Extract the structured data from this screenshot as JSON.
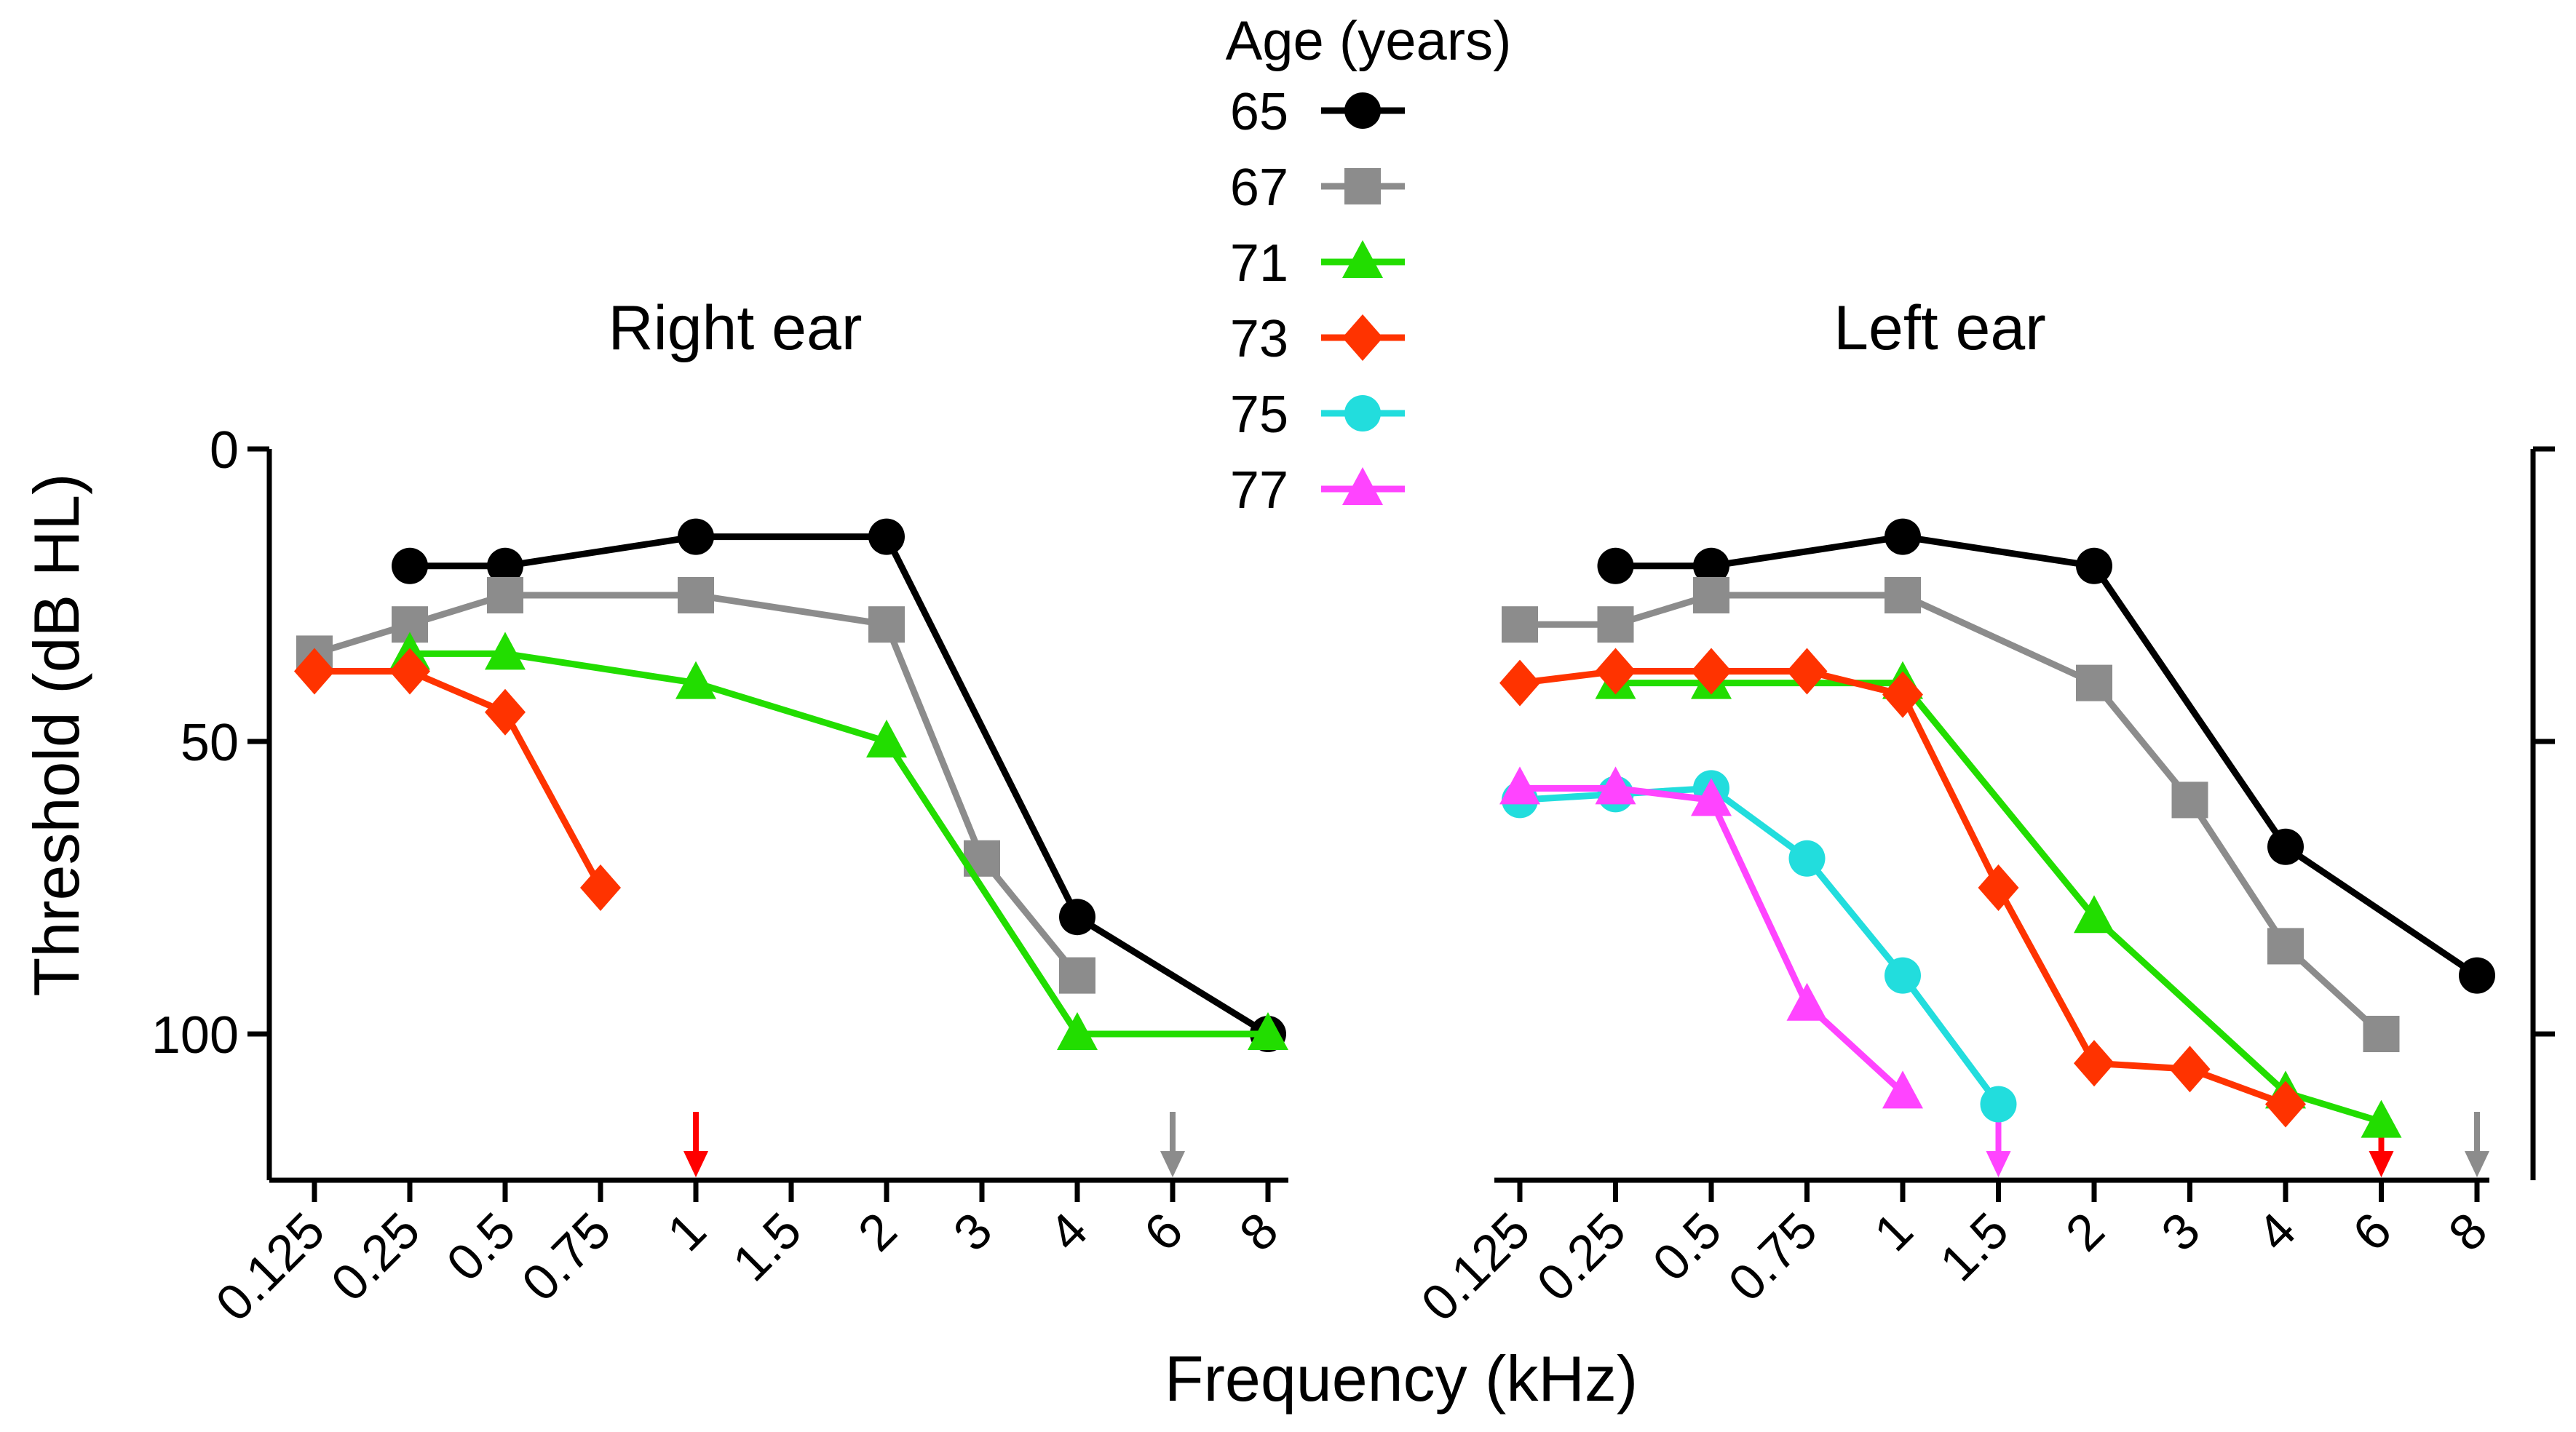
{
  "chart_data": {
    "type": "line",
    "figure_xlabel": "Frequency (kHz)",
    "figure_ylabel": "Threshold (dB HL)",
    "categories": [
      "0.125",
      "0.25",
      "0.5",
      "0.75",
      "1",
      "1.5",
      "2",
      "3",
      "4",
      "6",
      "8"
    ],
    "ylim": [
      0,
      125
    ],
    "yticks": [
      0,
      50,
      100
    ],
    "legend": {
      "title": "Age (years)",
      "position": "top-center",
      "entries": [
        {
          "label": "65",
          "color": "#000000",
          "marker": "circle"
        },
        {
          "label": "67",
          "color": "#8c8c8c",
          "marker": "square"
        },
        {
          "label": "71",
          "color": "#22dd00",
          "marker": "triangle"
        },
        {
          "label": "73",
          "color": "#ff3300",
          "marker": "diamond"
        },
        {
          "label": "75",
          "color": "#22dddd",
          "marker": "circle"
        },
        {
          "label": "77",
          "color": "#ff44ff",
          "marker": "triangle"
        }
      ]
    },
    "panels": [
      {
        "id": "right",
        "title": "Right ear",
        "series": [
          {
            "age": "65",
            "x": [
              "0.25",
              "0.5",
              "1",
              "2",
              "4",
              "8"
            ],
            "y": [
              20,
              20,
              15,
              15,
              80,
              100
            ]
          },
          {
            "age": "67",
            "x": [
              "0.125",
              "0.25",
              "0.5",
              "1",
              "2",
              "3",
              "4"
            ],
            "y": [
              35,
              30,
              25,
              25,
              30,
              70,
              90
            ]
          },
          {
            "age": "71",
            "x": [
              "0.25",
              "0.5",
              "1",
              "2",
              "4",
              "8"
            ],
            "y": [
              35,
              35,
              40,
              50,
              100,
              100
            ]
          },
          {
            "age": "73",
            "x": [
              "0.125",
              "0.25",
              "0.5",
              "0.75"
            ],
            "y": [
              38,
              38,
              45,
              75
            ]
          }
        ],
        "no_response_arrows": [
          {
            "x": "1",
            "color": "#ff0000"
          },
          {
            "x": "6",
            "color": "#8c8c8c"
          }
        ]
      },
      {
        "id": "left",
        "title": "Left ear",
        "series": [
          {
            "age": "65",
            "x": [
              "0.25",
              "0.5",
              "1",
              "2",
              "4",
              "8"
            ],
            "y": [
              20,
              20,
              15,
              20,
              68,
              90
            ]
          },
          {
            "age": "67",
            "x": [
              "0.125",
              "0.25",
              "0.5",
              "1",
              "2",
              "3",
              "4",
              "6"
            ],
            "y": [
              30,
              30,
              25,
              25,
              40,
              60,
              85,
              100
            ]
          },
          {
            "age": "71",
            "x": [
              "0.25",
              "0.5",
              "1",
              "2",
              "4",
              "6"
            ],
            "y": [
              40,
              40,
              40,
              80,
              110,
              115
            ]
          },
          {
            "age": "73",
            "x": [
              "0.125",
              "0.25",
              "0.5",
              "0.75",
              "1",
              "1.5",
              "2",
              "3",
              "4"
            ],
            "y": [
              40,
              38,
              38,
              38,
              42,
              75,
              105,
              106,
              112
            ]
          },
          {
            "age": "75",
            "x": [
              "0.125",
              "0.25",
              "0.5",
              "0.75",
              "1",
              "1.5"
            ],
            "y": [
              60,
              59,
              58,
              70,
              90,
              112
            ]
          },
          {
            "age": "77",
            "x": [
              "0.125",
              "0.25",
              "0.5",
              "0.75",
              "1"
            ],
            "y": [
              58,
              58,
              60,
              95,
              110
            ]
          }
        ],
        "no_response_arrows": [
          {
            "x": "1.5",
            "color": "#ff44ff"
          },
          {
            "x": "6",
            "color": "#ff0000"
          },
          {
            "x": "8",
            "color": "#8c8c8c"
          }
        ]
      }
    ]
  }
}
